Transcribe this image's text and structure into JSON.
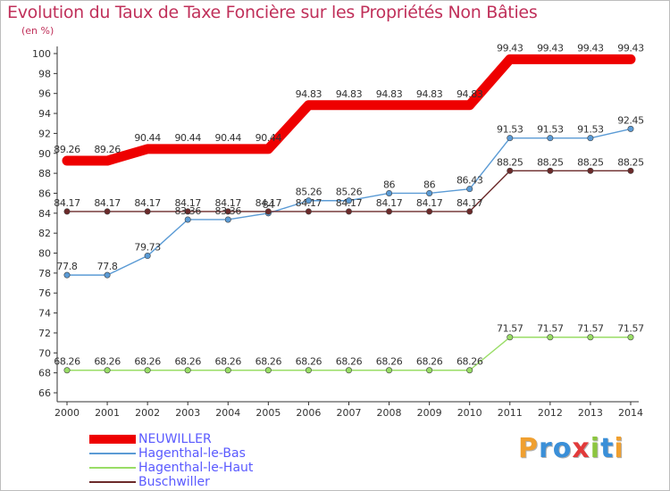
{
  "chart_data": {
    "type": "line",
    "title": "Evolution du Taux de Taxe Foncière sur les Propriétés Non Bâties",
    "ylabel": "(en %)",
    "xlabel": "",
    "ylim": [
      66,
      100
    ],
    "yticks": [
      66,
      68,
      70,
      72,
      74,
      76,
      78,
      80,
      82,
      84,
      86,
      88,
      90,
      92,
      94,
      96,
      98,
      100
    ],
    "categories": [
      "2000",
      "2001",
      "2002",
      "2003",
      "2004",
      "2005",
      "2006",
      "2007",
      "2008",
      "2009",
      "2010",
      "2011",
      "2012",
      "2013",
      "2014"
    ],
    "grid": false,
    "legend_position": "bottom-left",
    "series": [
      {
        "name": "NEUWILLER",
        "color": "#ee0000",
        "values": [
          89.26,
          89.26,
          90.44,
          90.44,
          90.44,
          90.44,
          94.83,
          94.83,
          94.83,
          94.83,
          94.83,
          99.43,
          99.43,
          99.43,
          99.43
        ]
      },
      {
        "name": "Hagenthal-le-Bas",
        "color": "#5b9bd5",
        "values": [
          77.8,
          77.8,
          79.73,
          83.36,
          83.36,
          84,
          85.26,
          85.26,
          86,
          86,
          86.43,
          91.53,
          91.53,
          91.53,
          92.45
        ]
      },
      {
        "name": "Hagenthal-le-Haut",
        "color": "#99dd66",
        "values": [
          68.26,
          68.26,
          68.26,
          68.26,
          68.26,
          68.26,
          68.26,
          68.26,
          68.26,
          68.26,
          68.26,
          71.57,
          71.57,
          71.57,
          71.57
        ]
      },
      {
        "name": "Buschwiller",
        "color": "#6b2a2a",
        "values": [
          84.17,
          84.17,
          84.17,
          84.17,
          84.17,
          84.17,
          84.17,
          84.17,
          84.17,
          84.17,
          84.17,
          88.25,
          88.25,
          88.25,
          88.25
        ]
      }
    ]
  },
  "logo": {
    "letters": [
      "P",
      "r",
      "o",
      "x",
      "i",
      "t",
      "i"
    ],
    "colors": [
      "#f0a030",
      "#3a8fd8",
      "#3a8fd8",
      "#e23a3a",
      "#8cc63f",
      "#3a8fd8",
      "#f0a030"
    ]
  }
}
